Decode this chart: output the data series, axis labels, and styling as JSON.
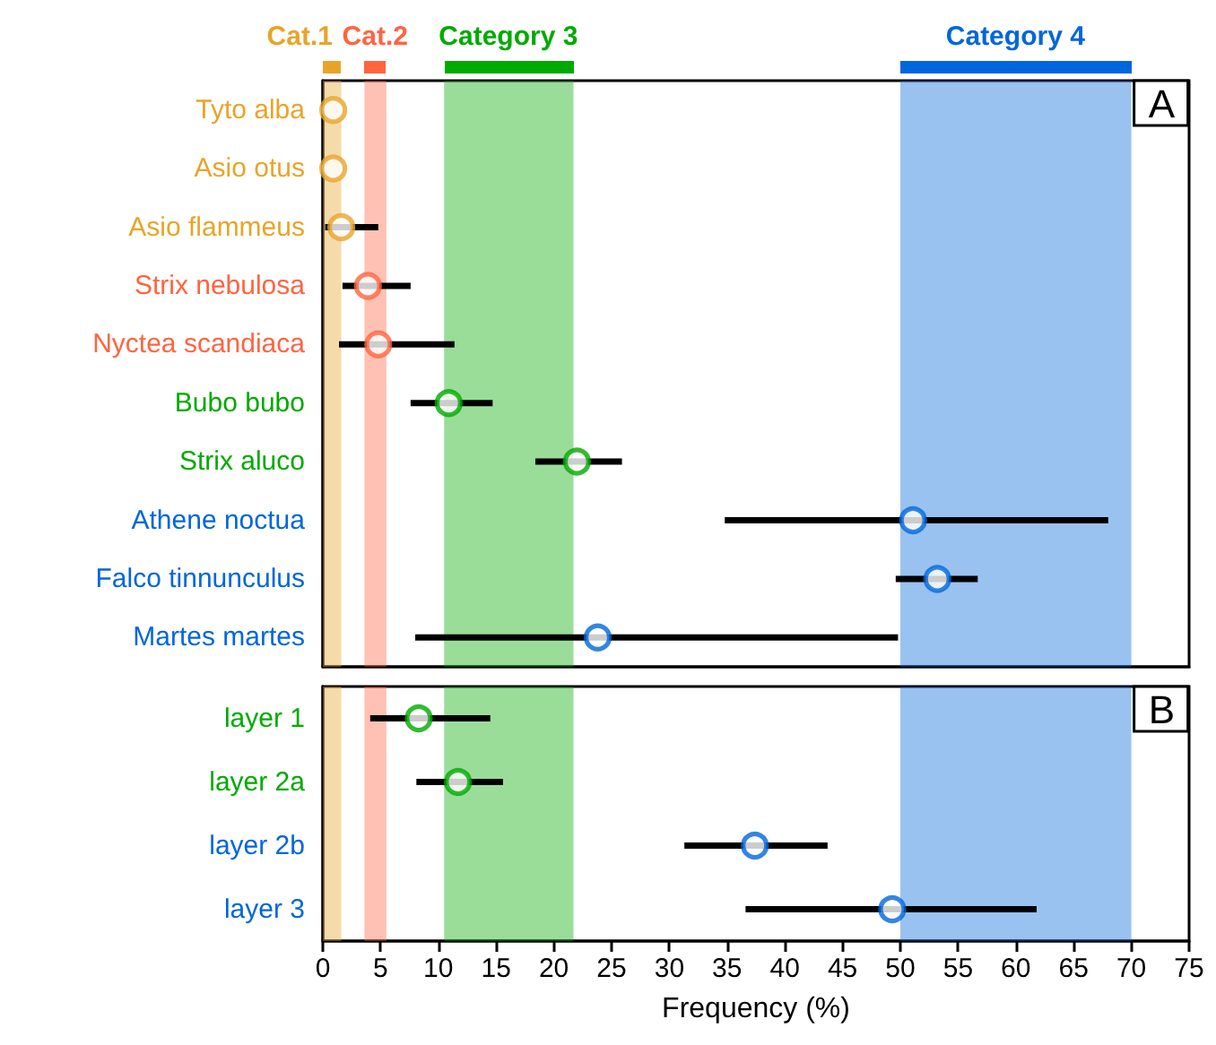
{
  "chart_data": [
    {
      "type": "scatter",
      "orientation": "horizontal",
      "marker": "circle",
      "categories": [
        "Tyto alba",
        "Asio otus",
        "Asio flammeus",
        "Strix nebulosa",
        "Nyctea scandiaca",
        "Bubo bubo",
        "Strix aluco",
        "Athene noctua",
        "Falco tinnunculus",
        "Martes martes"
      ],
      "values": [
        0.9,
        0.9,
        1.6,
        3.9,
        4.8,
        10.9,
        22.0,
        51.1,
        53.2,
        23.8
      ],
      "errors": [
        null,
        null,
        [
          0.2,
          4.8
        ],
        [
          1.7,
          7.6
        ],
        [
          1.4,
          11.4
        ],
        [
          7.6,
          14.7
        ],
        [
          18.4,
          25.9
        ],
        [
          34.8,
          68.0
        ],
        [
          49.6,
          56.7
        ],
        [
          8.0,
          49.8
        ]
      ],
      "colors": [
        "#e8a42a",
        "#e8a42a",
        "#e8a42a",
        "#ff6440",
        "#ff6440",
        "#00aa00",
        "#00aa00",
        "#0066dd",
        "#0066dd",
        "#0066dd"
      ],
      "bands": [
        {
          "axis": "x",
          "from": 0,
          "to": 1.6,
          "label": "Cat.1",
          "color": "#e8a42a"
        },
        {
          "axis": "x",
          "from": 3.6,
          "to": 5.5,
          "label": "Cat.2",
          "color": "#ff6440"
        },
        {
          "axis": "x",
          "from": 10.5,
          "to": 21.7,
          "label": "Category 3",
          "color": "#00aa00"
        },
        {
          "axis": "x",
          "from": 50,
          "to": 70,
          "label": "Category 4",
          "color": "#0066dd"
        }
      ],
      "annotations": [
        "A"
      ],
      "xlim": [
        0,
        75
      ],
      "xticks": [
        0,
        5,
        10,
        15,
        20,
        25,
        30,
        35,
        40,
        45,
        50,
        55,
        60,
        65,
        70,
        75
      ],
      "tick_labels": "y"
    },
    {
      "type": "scatter",
      "orientation": "horizontal",
      "marker": "circle",
      "categories": [
        "layer 1",
        "layer 2a",
        "layer 2b",
        "layer 3"
      ],
      "values": [
        8.3,
        11.7,
        37.4,
        49.3
      ],
      "errors": [
        [
          4.1,
          14.5
        ],
        [
          8.1,
          15.6
        ],
        [
          31.3,
          43.7
        ],
        [
          36.6,
          61.8
        ]
      ],
      "colors": [
        "#00aa00",
        "#00aa00",
        "#0066dd",
        "#0066dd"
      ],
      "bands": [
        {
          "axis": "x",
          "from": 0,
          "to": 1.6,
          "color": "#e8a42a"
        },
        {
          "axis": "x",
          "from": 3.6,
          "to": 5.5,
          "color": "#ff6440"
        },
        {
          "axis": "x",
          "from": 10.5,
          "to": 21.7,
          "color": "#00aa00"
        },
        {
          "axis": "x",
          "from": 50,
          "to": 70,
          "color": "#0066dd"
        }
      ],
      "annotations": [
        "B"
      ],
      "xlabel": "Frequency (%)",
      "xlim": [
        0,
        75
      ],
      "xticks": [
        0,
        5,
        10,
        15,
        20,
        25,
        30,
        35,
        40,
        45,
        50,
        55,
        60,
        65,
        70,
        75
      ]
    }
  ]
}
